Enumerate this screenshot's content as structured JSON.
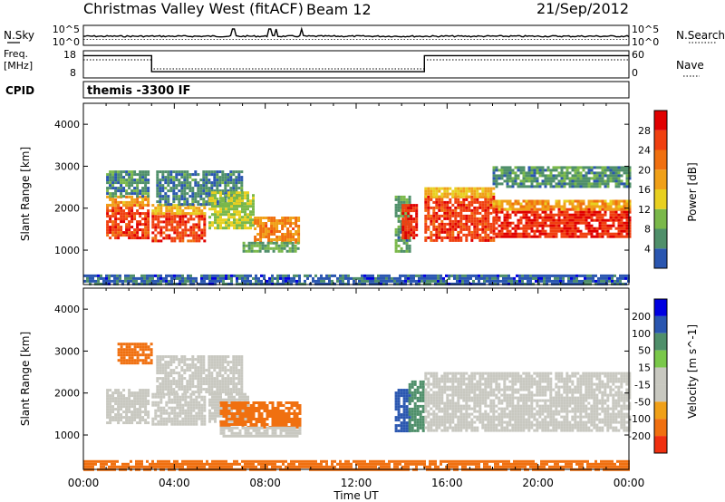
{
  "header": {
    "station": "Christmas Valley West (fitACF)",
    "beam": "Beam 12",
    "date": "21/Sep/2012"
  },
  "side_labels": {
    "nsky": "N.Sky",
    "freq_line1": "Freq.",
    "freq_line2": "[MHz]",
    "cpid": "CPID",
    "nsearch": "N.Search",
    "nave": "Nave"
  },
  "cpid_text": "themis -3300 IF",
  "colors": {
    "power_scale": [
      "#0000e0",
      "#2a56b0",
      "#4f8f6a",
      "#7ab84a",
      "#e8d020",
      "#f0a018",
      "#f07010",
      "#f04010",
      "#e00000"
    ],
    "velocity_scale": [
      "#ff0000",
      "#f03010",
      "#f07010",
      "#f0a018",
      "#c8c8c0",
      "#c8c8c0",
      "#7ac84a",
      "#4f8f6a",
      "#2a56b0",
      "#0000e0"
    ],
    "ground_scatter": "#c8c8c0"
  },
  "chart_data": [
    {
      "type": "line",
      "name": "noise-panel",
      "left_axis": {
        "label": "N.Sky",
        "ticks": [
          "10^5",
          "10^0"
        ]
      },
      "right_axis": {
        "label": "N.Search",
        "ticks": [
          "10^5",
          "10^0"
        ]
      },
      "spikes_hours": [
        6.6,
        8.2,
        8.5,
        9.6
      ]
    },
    {
      "type": "line",
      "name": "freq-nave-panel",
      "left_axis": {
        "label": "Freq. [MHz]",
        "ticks": [
          18,
          8
        ],
        "range": [
          8,
          18
        ]
      },
      "right_axis": {
        "label": "Nave",
        "ticks": [
          60,
          0
        ],
        "range": [
          0,
          60
        ]
      },
      "freq_series": {
        "x_hours": [
          0,
          3,
          3,
          15,
          15,
          24
        ],
        "values_mhz": [
          16.2,
          16.2,
          10.3,
          10.3,
          16.2,
          16.2
        ]
      },
      "nave_series": {
        "x_hours": [
          0,
          3,
          3,
          15,
          15,
          24
        ],
        "values": [
          40,
          40,
          20,
          20,
          40,
          40
        ]
      }
    },
    {
      "type": "heatmap",
      "name": "power-panel",
      "ylabel": "Slant Range [km]",
      "ylim": [
        180,
        4500
      ],
      "yticks": [
        1000,
        2000,
        3000,
        4000
      ],
      "xlim_hours": [
        0,
        24
      ],
      "colorbar": {
        "label": "Power [dB]",
        "ticks": [
          4,
          8,
          12,
          16,
          20,
          24,
          28
        ],
        "range": [
          0,
          32
        ]
      },
      "regions": [
        {
          "t": [
            1.0,
            2.9
          ],
          "r": [
            1300,
            2100
          ],
          "v": 27
        },
        {
          "t": [
            1.0,
            2.9
          ],
          "r": [
            2100,
            2300
          ],
          "v": 20
        },
        {
          "t": [
            1.0,
            2.9
          ],
          "r": [
            2300,
            2900
          ],
          "v": 9
        },
        {
          "t": [
            3.0,
            5.3
          ],
          "r": [
            1250,
            1900
          ],
          "v": 27
        },
        {
          "t": [
            3.0,
            5.3
          ],
          "r": [
            1900,
            2100
          ],
          "v": 18
        },
        {
          "t": [
            3.2,
            7.0
          ],
          "r": [
            2100,
            2900
          ],
          "v": 8
        },
        {
          "t": [
            5.5,
            7.5
          ],
          "r": [
            1500,
            2400
          ],
          "v": 14
        },
        {
          "t": [
            7.5,
            9.5
          ],
          "r": [
            1200,
            1800
          ],
          "v": 22
        },
        {
          "t": [
            7.0,
            9.5
          ],
          "r": [
            1000,
            1200
          ],
          "v": 10
        },
        {
          "t": [
            13.7,
            14.3
          ],
          "r": [
            1000,
            2300
          ],
          "v": 10
        },
        {
          "t": [
            14.0,
            14.7
          ],
          "r": [
            1300,
            2100
          ],
          "v": 28
        },
        {
          "t": [
            15.0,
            18.0
          ],
          "r": [
            1200,
            2300
          ],
          "v": 27
        },
        {
          "t": [
            15.0,
            18.0
          ],
          "r": [
            2300,
            2500
          ],
          "v": 18
        },
        {
          "t": [
            18.0,
            24.0
          ],
          "r": [
            1300,
            2000
          ],
          "v": 28
        },
        {
          "t": [
            18.0,
            24.0
          ],
          "r": [
            2000,
            2200
          ],
          "v": 20
        },
        {
          "t": [
            18.0,
            24.0
          ],
          "r": [
            2500,
            3000
          ],
          "v": 9
        },
        {
          "t": [
            0.0,
            24.0
          ],
          "r": [
            200,
            420
          ],
          "v": 6
        }
      ]
    },
    {
      "type": "heatmap",
      "name": "velocity-panel",
      "ylabel": "Slant Range [km]",
      "ylim": [
        180,
        4500
      ],
      "yticks": [
        1000,
        2000,
        3000,
        4000
      ],
      "xlabel": "Time UT",
      "xticks": [
        "00:00",
        "04:00",
        "08:00",
        "12:00",
        "16:00",
        "20:00",
        "00:00"
      ],
      "xlim_hours": [
        0,
        24
      ],
      "colorbar": {
        "label": "Velocity [m s^-1]",
        "ticks": [
          200,
          100,
          50,
          15,
          -15,
          -50,
          -100,
          -200
        ]
      },
      "regions": [
        {
          "t": [
            1.0,
            2.9
          ],
          "r": [
            1300,
            2100
          ],
          "v": 0
        },
        {
          "t": [
            3.0,
            5.3
          ],
          "r": [
            1250,
            2000
          ],
          "v": 0
        },
        {
          "t": [
            3.2,
            7.0
          ],
          "r": [
            2000,
            2900
          ],
          "v": 0
        },
        {
          "t": [
            1.5,
            3.0
          ],
          "r": [
            2700,
            3200
          ],
          "v": -60
        },
        {
          "t": [
            5.5,
            7.2
          ],
          "r": [
            1300,
            2000
          ],
          "v": 0
        },
        {
          "t": [
            6.0,
            9.5
          ],
          "r": [
            1200,
            1800
          ],
          "v": -60
        },
        {
          "t": [
            6.0,
            9.5
          ],
          "r": [
            950,
            1200
          ],
          "v": 0
        },
        {
          "t": [
            13.7,
            14.3
          ],
          "r": [
            1100,
            2100
          ],
          "v": 180
        },
        {
          "t": [
            14.3,
            15.0
          ],
          "r": [
            1100,
            2300
          ],
          "v": 60
        },
        {
          "t": [
            15.0,
            24.0
          ],
          "r": [
            1100,
            2500
          ],
          "v": 0
        },
        {
          "t": [
            0.0,
            24.0
          ],
          "r": [
            200,
            400
          ],
          "v": -60
        }
      ]
    }
  ]
}
